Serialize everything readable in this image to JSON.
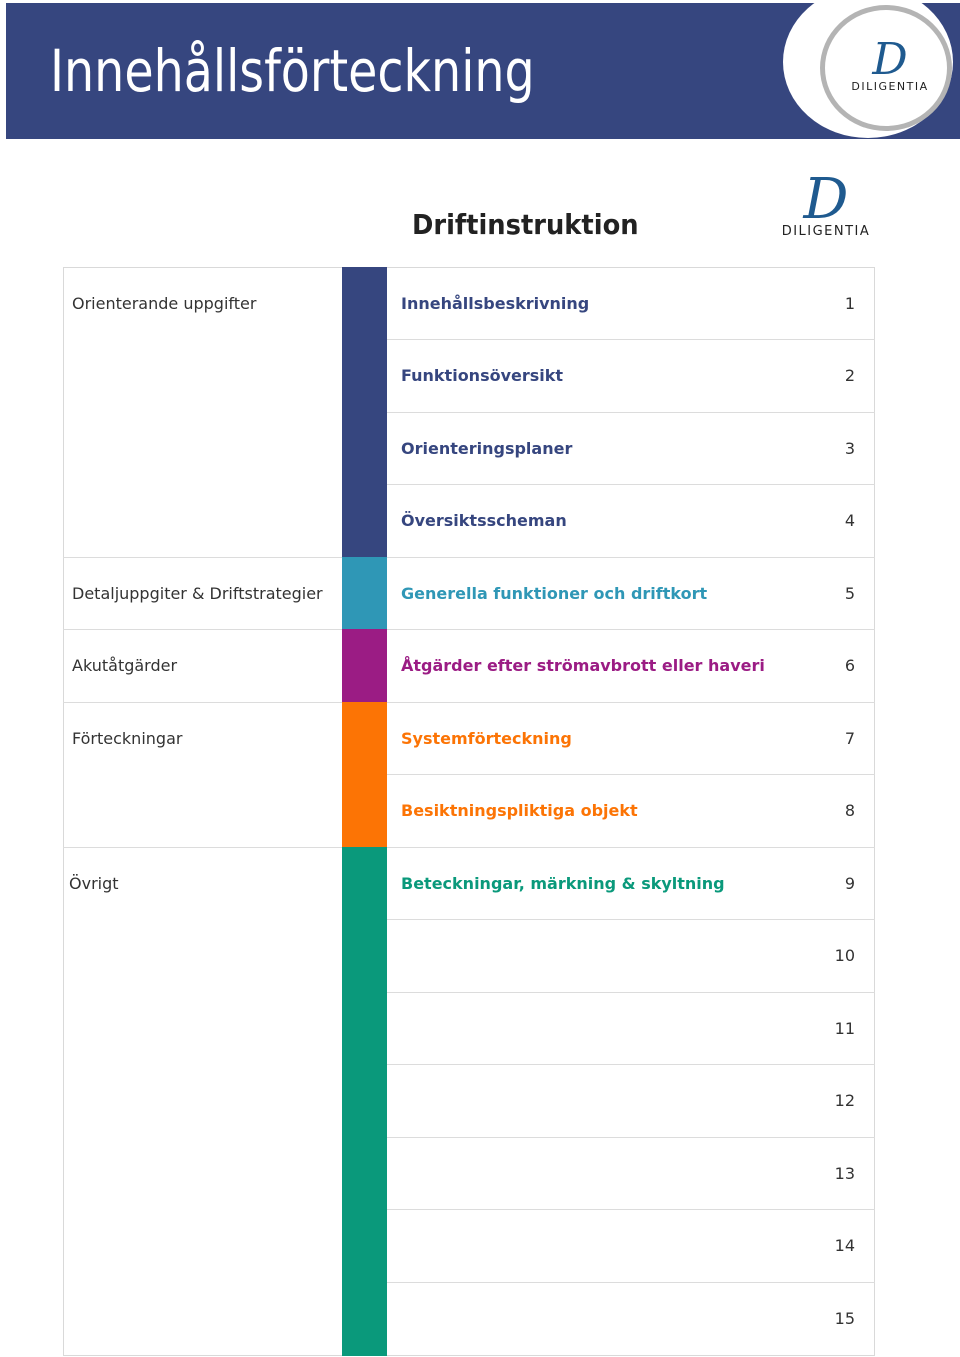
{
  "header": {
    "title": "Innehållsförteckning",
    "logo_mark": "D",
    "logo_word": "DILIGENTIA"
  },
  "document": {
    "title": "Driftinstruktion",
    "logo_mark": "D",
    "logo_word": "DILIGENTIA"
  },
  "colors": {
    "banner": "#36467f",
    "orienterande": "#36467f",
    "detalj": "#2f97b6",
    "akut": "#9b1c84",
    "forteckningar": "#fc7405",
    "ovrigt": "#0a997b"
  },
  "categories": {
    "orienterande": "Orienterande uppgifter",
    "detalj": "Detaljuppgiter & Driftstrategier",
    "akut": "Akutåtgärder",
    "forteckningar": "Förteckningar",
    "ovrigt": "Övrigt"
  },
  "entries": [
    {
      "label": "Innehållsbeskrivning",
      "page": "1"
    },
    {
      "label": "Funktionsöversikt",
      "page": "2"
    },
    {
      "label": "Orienteringsplaner",
      "page": "3"
    },
    {
      "label": "Översiktsscheman",
      "page": "4"
    },
    {
      "label": "Generella funktioner och driftkort",
      "page": "5"
    },
    {
      "label": "Åtgärder efter strömavbrott eller haveri",
      "page": "6"
    },
    {
      "label": "Systemförteckning",
      "page": "7"
    },
    {
      "label": "Besiktningspliktiga objekt",
      "page": "8"
    },
    {
      "label": "Beteckningar, märkning & skyltning",
      "page": "9"
    },
    {
      "label": "",
      "page": "10"
    },
    {
      "label": "",
      "page": "11"
    },
    {
      "label": "",
      "page": "12"
    },
    {
      "label": "",
      "page": "13"
    },
    {
      "label": "",
      "page": "14"
    },
    {
      "label": "",
      "page": "15"
    }
  ]
}
